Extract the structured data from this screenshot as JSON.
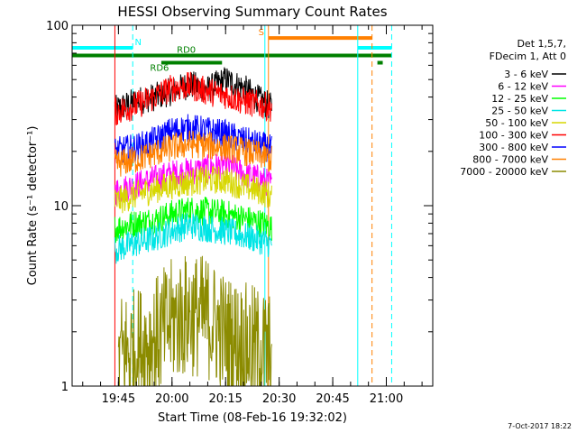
{
  "chart_data": {
    "type": "line",
    "title": "HESSI Observing Summary Count Rates",
    "xlabel": "Start Time (08-Feb-16 19:32:02)",
    "ylabel": "Count Rate (s⁻¹ detector⁻¹)",
    "y_scale": "log",
    "ylim": [
      1,
      100
    ],
    "xlim": [
      "19:32:02",
      "21:13:00"
    ],
    "x_ticks": [
      "19:45",
      "20:00",
      "20:15",
      "20:30",
      "20:45",
      "21:00"
    ],
    "y_ticks": [
      "1",
      "10",
      "100"
    ],
    "legend_header": [
      "Det 1,5,7,",
      "FDecim 1, Att 0"
    ],
    "legend_placement": "right",
    "grid": false,
    "series": [
      {
        "name": "3 - 6 keV",
        "color": "#000000",
        "x": [
          "19:44",
          "19:50",
          "19:55",
          "20:00",
          "20:05",
          "20:10",
          "20:15",
          "20:20",
          "20:25",
          "20:28"
        ],
        "y": [
          34,
          38,
          40,
          43,
          47,
          44,
          50,
          45,
          38,
          35
        ]
      },
      {
        "name": "6 - 12 keV",
        "color": "#ff00ff",
        "x": [
          "19:44",
          "19:50",
          "19:55",
          "20:00",
          "20:05",
          "20:10",
          "20:15",
          "20:20",
          "20:25",
          "20:28"
        ],
        "y": [
          12,
          13,
          14,
          15,
          15.5,
          16,
          17,
          15,
          14,
          13
        ]
      },
      {
        "name": "12 - 25 keV",
        "color": "#00ff00",
        "x": [
          "19:44",
          "19:50",
          "19:55",
          "20:00",
          "20:05",
          "20:10",
          "20:15",
          "20:20",
          "20:25",
          "20:28"
        ],
        "y": [
          7.5,
          8,
          8.3,
          9,
          9.5,
          9.3,
          9,
          8.5,
          8,
          7.6
        ]
      },
      {
        "name": "25 - 50 keV",
        "color": "#00e5e5",
        "x": [
          "19:44",
          "19:50",
          "19:55",
          "20:00",
          "20:05",
          "20:10",
          "20:15",
          "20:20",
          "20:25",
          "20:28"
        ],
        "y": [
          5.7,
          6.2,
          6.6,
          7.3,
          7.8,
          7.5,
          7.2,
          6.8,
          6.4,
          6.1
        ]
      },
      {
        "name": "50 - 100 keV",
        "color": "#d7d700",
        "x": [
          "19:44",
          "19:50",
          "19:55",
          "20:00",
          "20:05",
          "20:10",
          "20:15",
          "20:20",
          "20:25",
          "20:28"
        ],
        "y": [
          10.5,
          11.5,
          12.3,
          13,
          13.5,
          14,
          13.8,
          12.8,
          12,
          11.2
        ]
      },
      {
        "name": "100 - 300 keV",
        "color": "#ff0000",
        "x": [
          "19:44",
          "19:50",
          "19:55",
          "20:00",
          "20:05",
          "20:10",
          "20:15",
          "20:20",
          "20:25",
          "20:28"
        ],
        "y": [
          33,
          36,
          40,
          45,
          46,
          43,
          41,
          38,
          36,
          35
        ]
      },
      {
        "name": "300 - 800 keV",
        "color": "#0000ff",
        "x": [
          "19:44",
          "19:50",
          "19:55",
          "20:00",
          "20:05",
          "20:10",
          "20:15",
          "20:20",
          "20:25",
          "20:28"
        ],
        "y": [
          20,
          21,
          23,
          26,
          27,
          26,
          25,
          23,
          21.5,
          20.5
        ]
      },
      {
        "name": "800 - 7000 keV",
        "color": "#ff8000",
        "x": [
          "19:44",
          "19:50",
          "19:55",
          "20:00",
          "20:05",
          "20:10",
          "20:15",
          "20:20",
          "20:25",
          "20:28"
        ],
        "y": [
          17,
          18,
          19.5,
          21,
          22,
          21.5,
          21,
          20,
          19,
          18
        ]
      },
      {
        "name": "7000 - 20000 keV",
        "color": "#8b8b00",
        "x": [
          "19:45",
          "19:50",
          "19:55",
          "20:00",
          "20:05",
          "20:10",
          "20:15",
          "20:20",
          "20:25",
          "20:28"
        ],
        "y": [
          1.5,
          1.6,
          1.8,
          2.3,
          2.5,
          2.4,
          1.9,
          1.7,
          1.6,
          1.5
        ]
      }
    ],
    "flag_bars": [
      {
        "label": "N",
        "color": "#00ffff",
        "x0": "19:32:02",
        "x1": "19:49:00",
        "y": 75
      },
      {
        "label": "",
        "color": "#00ffff",
        "x0": "20:52:00",
        "x1": "21:01:30",
        "y": 75
      },
      {
        "label": "S",
        "color": "#ff8000",
        "x0": "20:27:00",
        "x1": "20:56:00",
        "y": 85
      },
      {
        "label": "RD0",
        "color": "#008000",
        "x0": "19:32:02",
        "x1": "21:01:30",
        "y": 68
      },
      {
        "label": "RD6",
        "color": "#008000",
        "x0": "19:57:00",
        "x1": "20:14:00",
        "y": 62
      },
      {
        "label": "",
        "color": "#008000",
        "x0": "20:57:30",
        "x1": "20:59:00",
        "y": 62
      }
    ],
    "markers": [
      {
        "x": "19:49:00",
        "color": "#00ffff",
        "style": "dashed"
      },
      {
        "x": "20:52:00",
        "color": "#00ffff",
        "style": "solid"
      },
      {
        "x": "21:01:30",
        "color": "#00ffff",
        "style": "dashed"
      },
      {
        "x": "20:27:00",
        "color": "#ff8000",
        "style": "solid"
      },
      {
        "x": "20:56:00",
        "color": "#ff8000",
        "style": "dashed"
      },
      {
        "x": "20:26:00",
        "color": "#00ffff",
        "style": "solid"
      },
      {
        "x": "19:44:00",
        "color": "#ff0000",
        "style": "solid"
      }
    ]
  },
  "footer_date": "7-Oct-2017 18:22"
}
